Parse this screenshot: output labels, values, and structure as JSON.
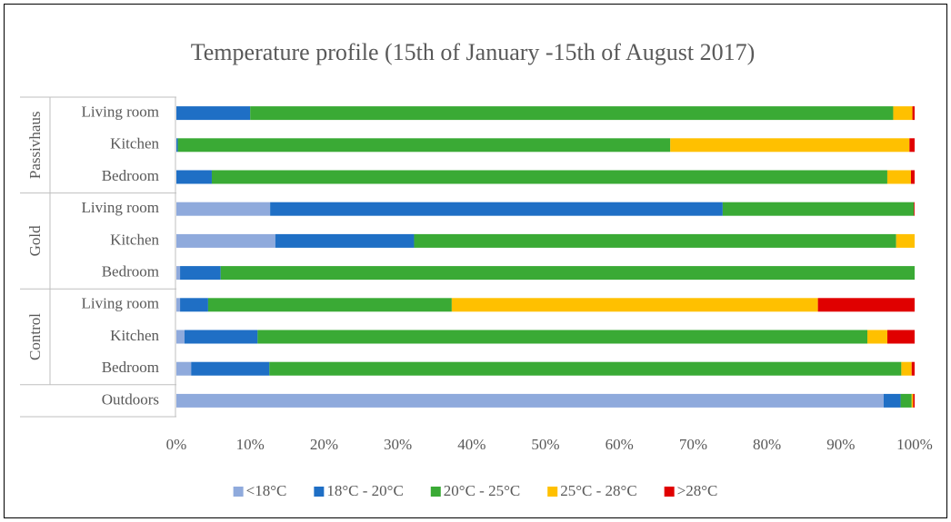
{
  "chart_data": {
    "type": "stacked_bar_horizontal",
    "title": "Temperature profile (15th of January -15th of August 2017)",
    "groups": [
      {
        "label": "Passivhaus",
        "categories": [
          "Living room",
          "Kitchen",
          "Bedroom"
        ]
      },
      {
        "label": "Gold",
        "categories": [
          "Living room",
          "Kitchen",
          "Bedroom"
        ]
      },
      {
        "label": "Control",
        "categories": [
          "Living room",
          "Kitchen",
          "Bedroom"
        ]
      },
      {
        "label": null,
        "categories": [
          "Outdoors"
        ]
      }
    ],
    "series": [
      {
        "name": "<18°C",
        "color": "#8faadc",
        "values": [
          0,
          0,
          0,
          12.7,
          13.4,
          0.5,
          0.5,
          1.1,
          2.0,
          95.8
        ]
      },
      {
        "name": "18°C - 20°C",
        "color": "#1f6fc5",
        "values": [
          10.0,
          0.2,
          4.8,
          61.3,
          18.8,
          5.5,
          3.8,
          9.9,
          10.6,
          2.3
        ]
      },
      {
        "name": "20°C - 25°C",
        "color": "#3aaa35",
        "values": [
          87.1,
          66.7,
          91.5,
          25.9,
          65.3,
          94.0,
          33.0,
          82.6,
          85.6,
          1.5
        ]
      },
      {
        "name": "25°C - 28°C",
        "color": "#ffc000",
        "values": [
          2.6,
          32.4,
          3.2,
          0,
          2.5,
          0,
          49.6,
          2.7,
          1.4,
          0.2
        ]
      },
      {
        "name": ">28°C",
        "color": "#e00000",
        "values": [
          0.3,
          0.7,
          0.5,
          0.1,
          0,
          0,
          13.1,
          3.7,
          0.4,
          0.2
        ]
      }
    ],
    "xlim": [
      0,
      100
    ],
    "xticks": [
      {
        "value": 0,
        "label": "0%"
      },
      {
        "value": 10,
        "label": "10%"
      },
      {
        "value": 20,
        "label": "20%"
      },
      {
        "value": 30,
        "label": "30%"
      },
      {
        "value": 40,
        "label": "40%"
      },
      {
        "value": 50,
        "label": "50%"
      },
      {
        "value": 60,
        "label": "60%"
      },
      {
        "value": 70,
        "label": "70%"
      },
      {
        "value": 80,
        "label": "80%"
      },
      {
        "value": 90,
        "label": "90%"
      },
      {
        "value": 100,
        "label": "100%"
      }
    ],
    "legend": "bottom"
  }
}
